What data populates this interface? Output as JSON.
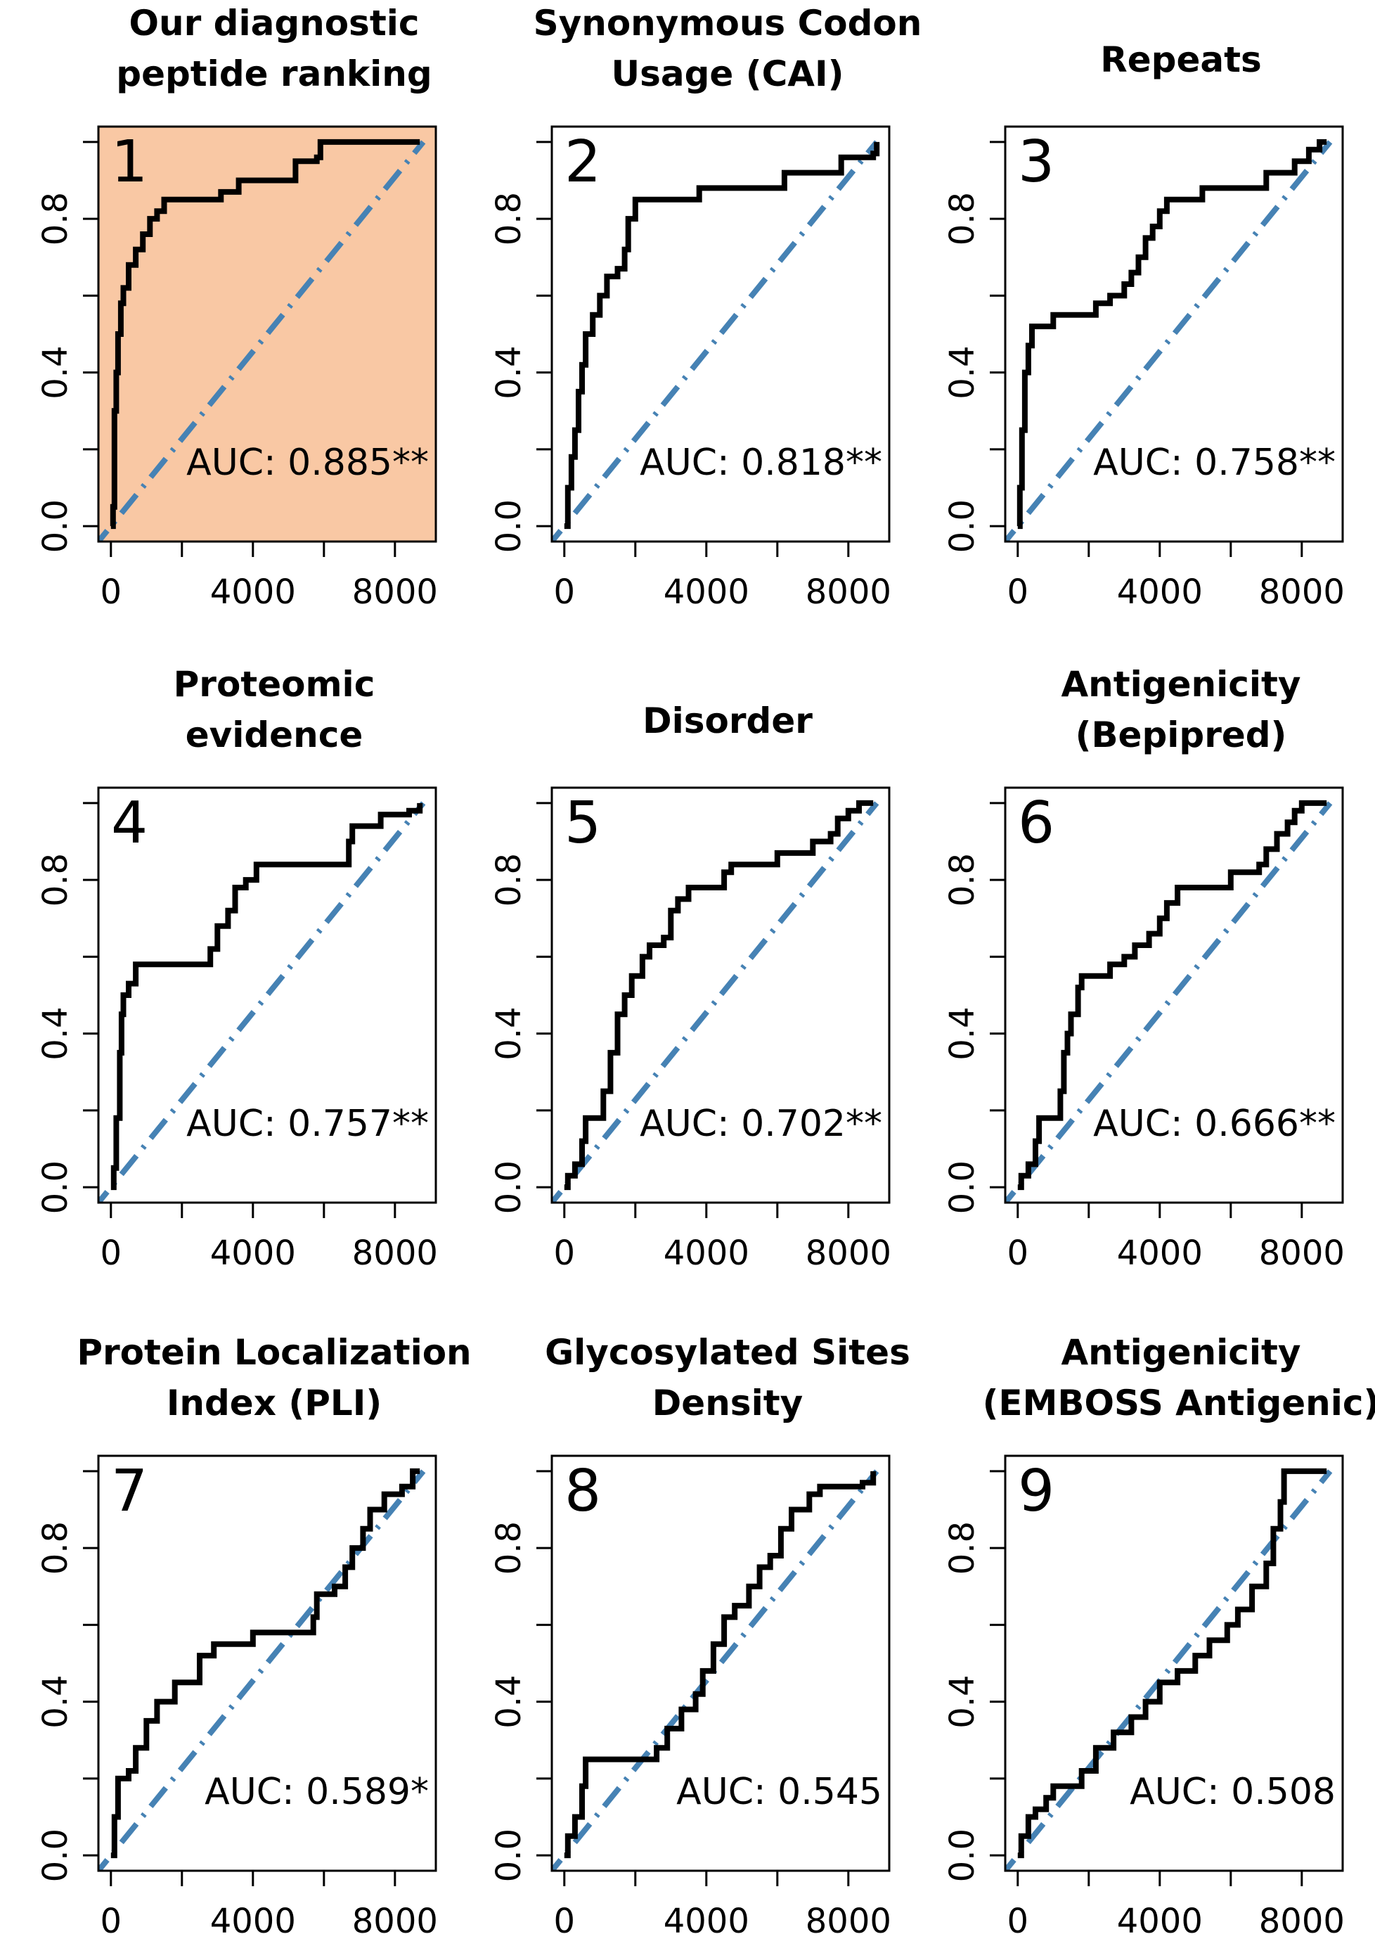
{
  "colors": {
    "roc_line": "#000000",
    "diagonal": "#4682b4",
    "highlight_background": "#f9c8a4"
  },
  "chart_data": [
    {
      "type": "line",
      "number": "1",
      "title_lines": [
        "Our diagnostic",
        "peptide ranking"
      ],
      "auc_label": "AUC: 0.885**",
      "highlighted": true,
      "xlim": [
        0,
        8800
      ],
      "ylim": [
        0,
        1
      ],
      "x_ticks": [
        "0",
        "4000",
        "8000"
      ],
      "y_ticks": [
        "0.0",
        "0.4",
        "0.8"
      ],
      "roc": [
        [
          0,
          0
        ],
        [
          60,
          0.05
        ],
        [
          100,
          0.3
        ],
        [
          150,
          0.4
        ],
        [
          200,
          0.5
        ],
        [
          280,
          0.58
        ],
        [
          350,
          0.62
        ],
        [
          500,
          0.68
        ],
        [
          700,
          0.72
        ],
        [
          900,
          0.76
        ],
        [
          1100,
          0.8
        ],
        [
          1300,
          0.82
        ],
        [
          1500,
          0.85
        ],
        [
          3000,
          0.85
        ],
        [
          3100,
          0.87
        ],
        [
          3500,
          0.87
        ],
        [
          3600,
          0.9
        ],
        [
          5000,
          0.9
        ],
        [
          5200,
          0.95
        ],
        [
          5800,
          0.96
        ],
        [
          5900,
          1.0
        ],
        [
          8700,
          1.0
        ]
      ]
    },
    {
      "type": "line",
      "number": "2",
      "title_lines": [
        "Synonymous Codon",
        "Usage (CAI)"
      ],
      "auc_label": "AUC: 0.818**",
      "highlighted": false,
      "xlim": [
        0,
        8800
      ],
      "ylim": [
        0,
        1
      ],
      "x_ticks": [
        "0",
        "4000",
        "8000"
      ],
      "y_ticks": [
        "0.0",
        "0.4",
        "0.8"
      ],
      "roc": [
        [
          0,
          0
        ],
        [
          100,
          0.1
        ],
        [
          200,
          0.18
        ],
        [
          300,
          0.25
        ],
        [
          400,
          0.35
        ],
        [
          500,
          0.42
        ],
        [
          600,
          0.5
        ],
        [
          800,
          0.55
        ],
        [
          1000,
          0.6
        ],
        [
          1200,
          0.65
        ],
        [
          1500,
          0.67
        ],
        [
          1700,
          0.72
        ],
        [
          1800,
          0.8
        ],
        [
          2000,
          0.85
        ],
        [
          3700,
          0.85
        ],
        [
          3800,
          0.88
        ],
        [
          6000,
          0.88
        ],
        [
          6200,
          0.92
        ],
        [
          7700,
          0.92
        ],
        [
          7800,
          0.96
        ],
        [
          8700,
          0.97
        ],
        [
          8800,
          1.0
        ]
      ]
    },
    {
      "type": "line",
      "number": "3",
      "title_lines": [
        "Repeats"
      ],
      "auc_label": "AUC: 0.758**",
      "highlighted": false,
      "xlim": [
        0,
        8800
      ],
      "ylim": [
        0,
        1
      ],
      "x_ticks": [
        "0",
        "4000",
        "8000"
      ],
      "y_ticks": [
        "0.0",
        "0.4",
        "0.8"
      ],
      "roc": [
        [
          0,
          0
        ],
        [
          60,
          0.1
        ],
        [
          120,
          0.25
        ],
        [
          200,
          0.4
        ],
        [
          300,
          0.47
        ],
        [
          400,
          0.52
        ],
        [
          900,
          0.52
        ],
        [
          1000,
          0.55
        ],
        [
          2000,
          0.55
        ],
        [
          2200,
          0.58
        ],
        [
          2600,
          0.6
        ],
        [
          3000,
          0.63
        ],
        [
          3200,
          0.66
        ],
        [
          3400,
          0.7
        ],
        [
          3600,
          0.75
        ],
        [
          3800,
          0.78
        ],
        [
          4000,
          0.82
        ],
        [
          4200,
          0.85
        ],
        [
          5000,
          0.85
        ],
        [
          5200,
          0.88
        ],
        [
          6800,
          0.88
        ],
        [
          7000,
          0.92
        ],
        [
          7800,
          0.95
        ],
        [
          8200,
          0.98
        ],
        [
          8500,
          1.0
        ],
        [
          8700,
          1.0
        ]
      ]
    },
    {
      "type": "line",
      "number": "4",
      "title_lines": [
        "Proteomic",
        "evidence"
      ],
      "auc_label": "AUC: 0.757**",
      "highlighted": false,
      "xlim": [
        0,
        8800
      ],
      "ylim": [
        0,
        1
      ],
      "x_ticks": [
        "0",
        "4000",
        "8000"
      ],
      "y_ticks": [
        "0.0",
        "0.4",
        "0.8"
      ],
      "roc": [
        [
          0,
          0
        ],
        [
          80,
          0.05
        ],
        [
          150,
          0.18
        ],
        [
          250,
          0.35
        ],
        [
          300,
          0.45
        ],
        [
          350,
          0.5
        ],
        [
          500,
          0.53
        ],
        [
          700,
          0.58
        ],
        [
          2700,
          0.58
        ],
        [
          2800,
          0.62
        ],
        [
          3000,
          0.68
        ],
        [
          3300,
          0.72
        ],
        [
          3500,
          0.78
        ],
        [
          3800,
          0.8
        ],
        [
          4100,
          0.84
        ],
        [
          6500,
          0.84
        ],
        [
          6700,
          0.9
        ],
        [
          6800,
          0.94
        ],
        [
          7400,
          0.94
        ],
        [
          7600,
          0.97
        ],
        [
          8400,
          0.98
        ],
        [
          8700,
          1.0
        ]
      ]
    },
    {
      "type": "line",
      "number": "5",
      "title_lines": [
        "Disorder"
      ],
      "auc_label": "AUC: 0.702**",
      "highlighted": false,
      "xlim": [
        0,
        8800
      ],
      "ylim": [
        0,
        1
      ],
      "x_ticks": [
        "0",
        "4000",
        "8000"
      ],
      "y_ticks": [
        "0.0",
        "0.4",
        "0.8"
      ],
      "roc": [
        [
          0,
          0
        ],
        [
          100,
          0.03
        ],
        [
          300,
          0.06
        ],
        [
          500,
          0.12
        ],
        [
          600,
          0.18
        ],
        [
          1000,
          0.18
        ],
        [
          1100,
          0.25
        ],
        [
          1300,
          0.35
        ],
        [
          1500,
          0.45
        ],
        [
          1700,
          0.5
        ],
        [
          1900,
          0.55
        ],
        [
          2200,
          0.6
        ],
        [
          2400,
          0.63
        ],
        [
          2800,
          0.65
        ],
        [
          3000,
          0.72
        ],
        [
          3200,
          0.75
        ],
        [
          3500,
          0.78
        ],
        [
          4200,
          0.78
        ],
        [
          4500,
          0.82
        ],
        [
          4700,
          0.84
        ],
        [
          5800,
          0.84
        ],
        [
          6000,
          0.87
        ],
        [
          7000,
          0.9
        ],
        [
          7500,
          0.92
        ],
        [
          7700,
          0.96
        ],
        [
          8000,
          0.98
        ],
        [
          8300,
          1.0
        ],
        [
          8700,
          1.0
        ]
      ]
    },
    {
      "type": "line",
      "number": "6",
      "title_lines": [
        "Antigenicity",
        "(Bepipred)"
      ],
      "auc_label": "AUC: 0.666**",
      "highlighted": false,
      "xlim": [
        0,
        8800
      ],
      "ylim": [
        0,
        1
      ],
      "x_ticks": [
        "0",
        "4000",
        "8000"
      ],
      "y_ticks": [
        "0.0",
        "0.4",
        "0.8"
      ],
      "roc": [
        [
          0,
          0
        ],
        [
          100,
          0.03
        ],
        [
          300,
          0.06
        ],
        [
          500,
          0.12
        ],
        [
          600,
          0.18
        ],
        [
          1000,
          0.18
        ],
        [
          1200,
          0.25
        ],
        [
          1300,
          0.35
        ],
        [
          1400,
          0.4
        ],
        [
          1500,
          0.45
        ],
        [
          1700,
          0.52
        ],
        [
          1800,
          0.55
        ],
        [
          2600,
          0.58
        ],
        [
          3000,
          0.6
        ],
        [
          3300,
          0.63
        ],
        [
          3700,
          0.66
        ],
        [
          4000,
          0.7
        ],
        [
          4200,
          0.74
        ],
        [
          4500,
          0.78
        ],
        [
          5800,
          0.78
        ],
        [
          6000,
          0.82
        ],
        [
          6800,
          0.84
        ],
        [
          7000,
          0.88
        ],
        [
          7300,
          0.92
        ],
        [
          7600,
          0.95
        ],
        [
          7800,
          0.98
        ],
        [
          8000,
          1.0
        ],
        [
          8700,
          1.0
        ]
      ]
    },
    {
      "type": "line",
      "number": "7",
      "title_lines": [
        "Protein Localization",
        "Index (PLI)"
      ],
      "auc_label": "AUC: 0.589*",
      "highlighted": false,
      "xlim": [
        0,
        8800
      ],
      "ylim": [
        0,
        1
      ],
      "x_ticks": [
        "0",
        "4000",
        "8000"
      ],
      "y_ticks": [
        "0.0",
        "0.4",
        "0.8"
      ],
      "roc": [
        [
          0,
          0
        ],
        [
          100,
          0.1
        ],
        [
          200,
          0.2
        ],
        [
          500,
          0.22
        ],
        [
          700,
          0.28
        ],
        [
          1000,
          0.35
        ],
        [
          1300,
          0.4
        ],
        [
          1800,
          0.45
        ],
        [
          2500,
          0.52
        ],
        [
          2900,
          0.55
        ],
        [
          3800,
          0.55
        ],
        [
          4000,
          0.58
        ],
        [
          5600,
          0.58
        ],
        [
          5700,
          0.62
        ],
        [
          5800,
          0.68
        ],
        [
          6300,
          0.7
        ],
        [
          6600,
          0.75
        ],
        [
          6800,
          0.8
        ],
        [
          7100,
          0.85
        ],
        [
          7300,
          0.9
        ],
        [
          7700,
          0.94
        ],
        [
          8200,
          0.96
        ],
        [
          8500,
          1.0
        ],
        [
          8700,
          1.0
        ]
      ]
    },
    {
      "type": "line",
      "number": "8",
      "title_lines": [
        "Glycosylated Sites",
        "Density"
      ],
      "auc_label": "AUC: 0.545",
      "highlighted": false,
      "xlim": [
        0,
        8800
      ],
      "ylim": [
        0,
        1
      ],
      "x_ticks": [
        "0",
        "4000",
        "8000"
      ],
      "y_ticks": [
        "0.0",
        "0.4",
        "0.8"
      ],
      "roc": [
        [
          0,
          0
        ],
        [
          100,
          0.05
        ],
        [
          300,
          0.1
        ],
        [
          500,
          0.18
        ],
        [
          600,
          0.25
        ],
        [
          2400,
          0.25
        ],
        [
          2600,
          0.28
        ],
        [
          2900,
          0.33
        ],
        [
          3300,
          0.38
        ],
        [
          3700,
          0.42
        ],
        [
          3900,
          0.48
        ],
        [
          4200,
          0.55
        ],
        [
          4500,
          0.62
        ],
        [
          4800,
          0.65
        ],
        [
          5200,
          0.7
        ],
        [
          5500,
          0.75
        ],
        [
          5800,
          0.78
        ],
        [
          6100,
          0.85
        ],
        [
          6400,
          0.9
        ],
        [
          6900,
          0.94
        ],
        [
          7200,
          0.96
        ],
        [
          8400,
          0.97
        ],
        [
          8700,
          1.0
        ]
      ]
    },
    {
      "type": "line",
      "number": "9",
      "title_lines": [
        "Antigenicity",
        "(EMBOSS Antigenic)"
      ],
      "auc_label": "AUC: 0.508",
      "highlighted": false,
      "xlim": [
        0,
        8800
      ],
      "ylim": [
        0,
        1
      ],
      "x_ticks": [
        "0",
        "4000",
        "8000"
      ],
      "y_ticks": [
        "0.0",
        "0.4",
        "0.8"
      ],
      "roc": [
        [
          0,
          0
        ],
        [
          100,
          0.05
        ],
        [
          300,
          0.1
        ],
        [
          500,
          0.12
        ],
        [
          800,
          0.15
        ],
        [
          1000,
          0.18
        ],
        [
          1600,
          0.18
        ],
        [
          1800,
          0.22
        ],
        [
          2200,
          0.28
        ],
        [
          2700,
          0.32
        ],
        [
          3200,
          0.36
        ],
        [
          3600,
          0.4
        ],
        [
          4000,
          0.45
        ],
        [
          4500,
          0.48
        ],
        [
          5000,
          0.52
        ],
        [
          5400,
          0.56
        ],
        [
          5900,
          0.6
        ],
        [
          6200,
          0.64
        ],
        [
          6600,
          0.7
        ],
        [
          7000,
          0.76
        ],
        [
          7200,
          0.85
        ],
        [
          7400,
          0.92
        ],
        [
          7500,
          1.0
        ],
        [
          8700,
          1.0
        ]
      ]
    }
  ]
}
